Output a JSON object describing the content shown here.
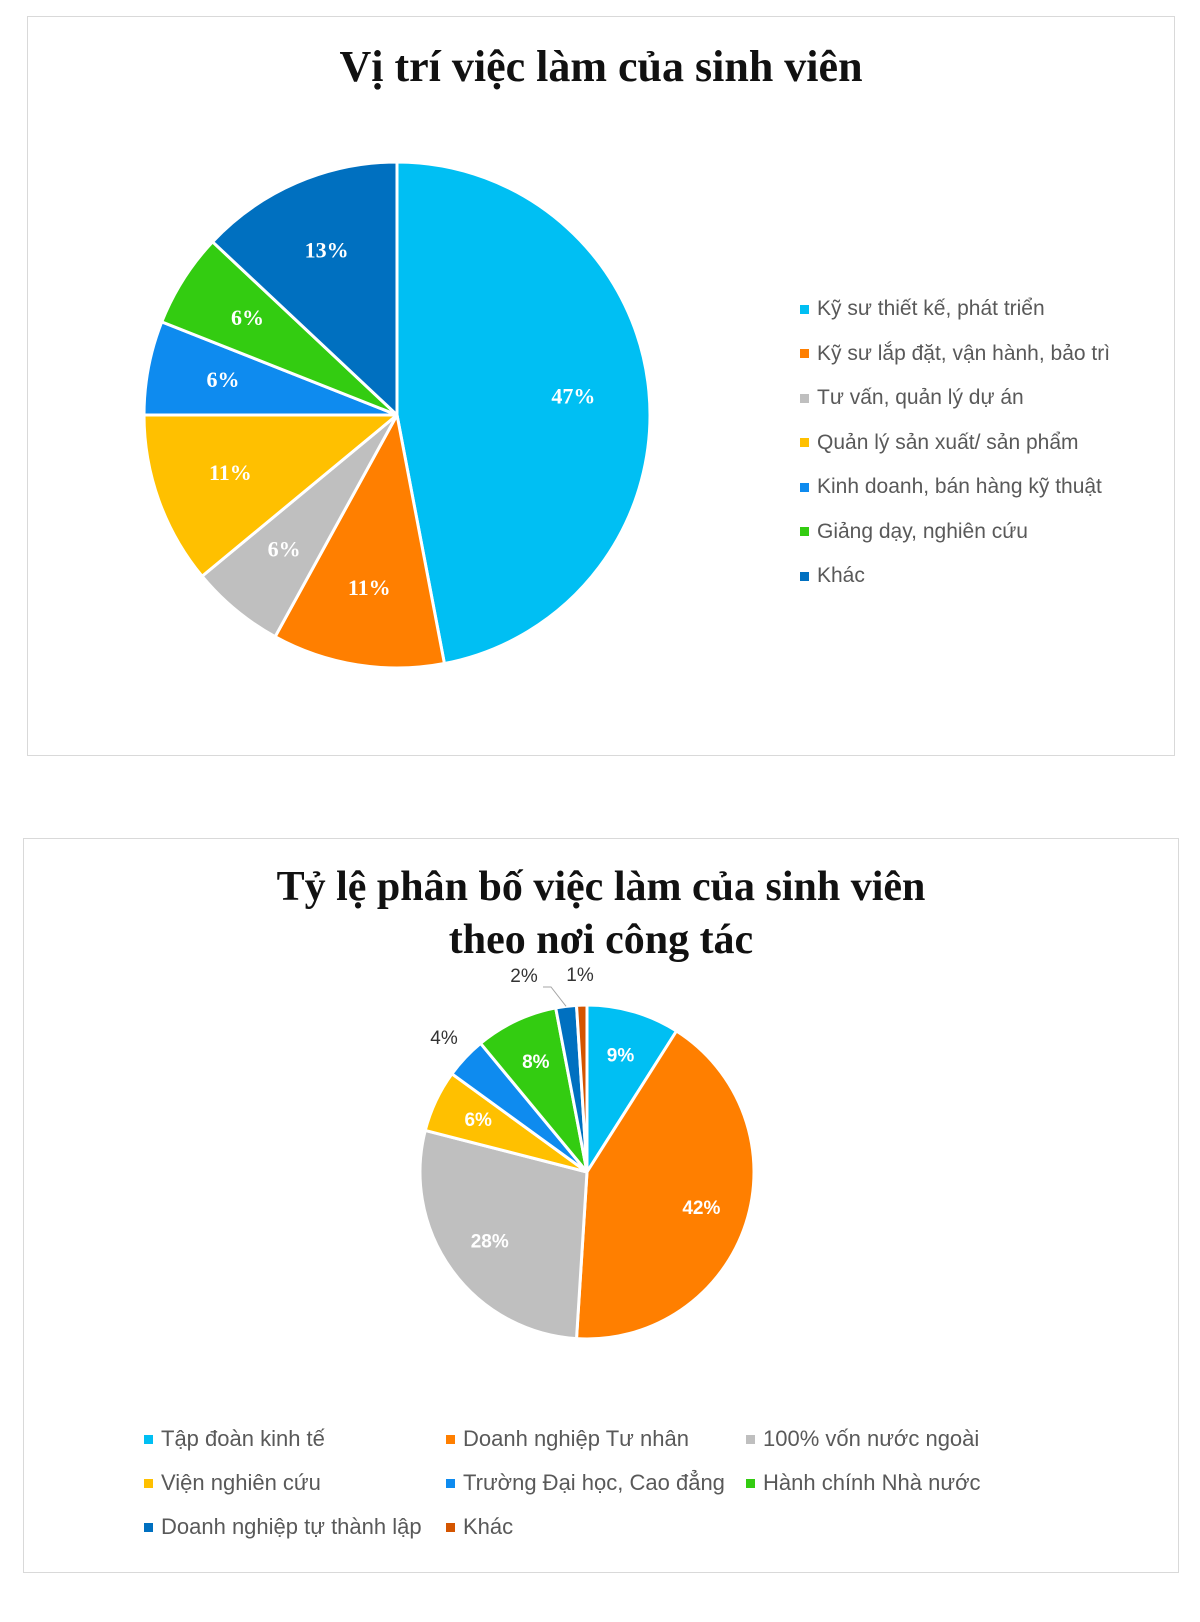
{
  "colors": {
    "cyan": "#00bff3",
    "orange": "#ff7f00",
    "gray": "#bfbfbf",
    "yellow": "#ffc000",
    "blue": "#0e8bef",
    "green": "#33cc11",
    "darkblue": "#0070c0",
    "red": "#d45500"
  },
  "chart_data": [
    {
      "type": "pie",
      "title": "Vị trí việc làm của sinh viên",
      "legend_position": "right",
      "categories": [
        "Kỹ sư thiết kế, phát triển",
        "Kỹ sư lắp đặt, vận hành, bảo trì",
        "Tư vấn, quản lý dự án",
        "Quản lý sản xuất/ sản phẩm",
        "Kinh doanh, bán hàng kỹ thuật",
        "Giảng dạy, nghiên cứu",
        "Khác"
      ],
      "values": [
        47,
        11,
        6,
        11,
        6,
        6,
        13
      ],
      "data_labels": [
        "47%",
        "11%",
        "6%",
        "11%",
        "6%",
        "6%",
        "13%"
      ],
      "colors": [
        "#00bff3",
        "#ff7f00",
        "#bfbfbf",
        "#ffc000",
        "#0e8bef",
        "#33cc11",
        "#0070c0"
      ]
    },
    {
      "type": "pie",
      "title": "Tỷ lệ phân bố việc làm của sinh viên theo nơi công tác",
      "title_lines": [
        "Tỷ lệ phân bố việc làm của sinh viên",
        "theo nơi công tác"
      ],
      "legend_position": "bottom",
      "categories": [
        "Tập đoàn kinh tế",
        "Doanh nghiệp Tư nhân",
        "100% vốn nước ngoài",
        "Viện nghiên cứu",
        "Trường Đại học, Cao đẳng",
        "Hành chính Nhà nước",
        "Doanh nghiệp tự thành lập",
        "Khác"
      ],
      "values": [
        9,
        42,
        28,
        6,
        4,
        8,
        2,
        1
      ],
      "data_labels": [
        "9%",
        "42%",
        "28%",
        "6%",
        "4%",
        "8%",
        "2%",
        "1%"
      ],
      "colors": [
        "#00bff3",
        "#ff7f00",
        "#bfbfbf",
        "#ffc000",
        "#0e8bef",
        "#33cc11",
        "#0070c0",
        "#d45500"
      ]
    }
  ]
}
